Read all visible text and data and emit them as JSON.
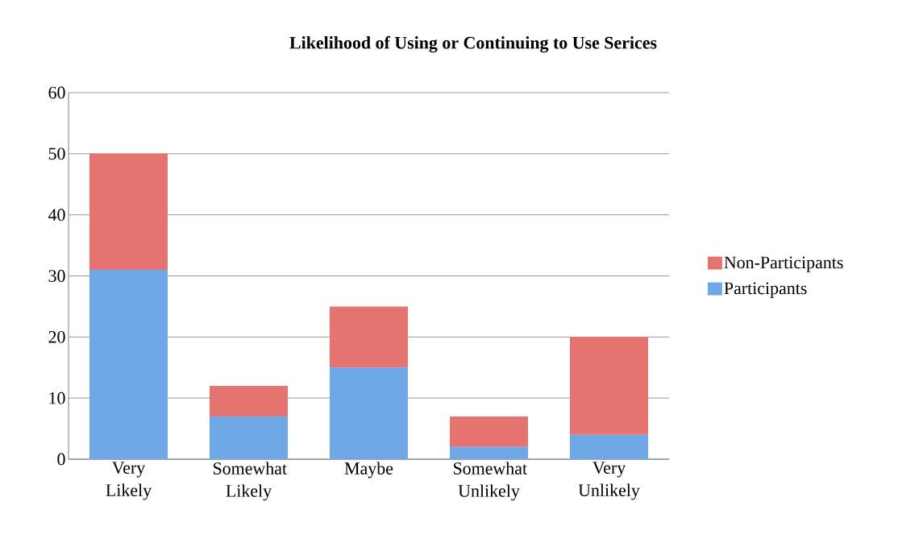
{
  "chart_data": {
    "type": "bar",
    "title": "Likelihood of Using or Continuing to Use Serices",
    "categories": [
      "Very Likely",
      "Somewhat Likely",
      "Maybe",
      "Somewhat Unlikely",
      "Very Unlikely"
    ],
    "stacked": true,
    "series": [
      {
        "name": "Participants",
        "color": "#6fa8e6",
        "values": [
          31,
          7,
          15,
          2,
          4
        ]
      },
      {
        "name": "Non-Participants",
        "color": "#e57470",
        "values": [
          19,
          5,
          10,
          5,
          16
        ]
      }
    ],
    "ylim": [
      0,
      60
    ],
    "yticks": [
      0,
      10,
      20,
      30,
      40,
      50,
      60
    ],
    "grid": "y",
    "legend": "right"
  }
}
